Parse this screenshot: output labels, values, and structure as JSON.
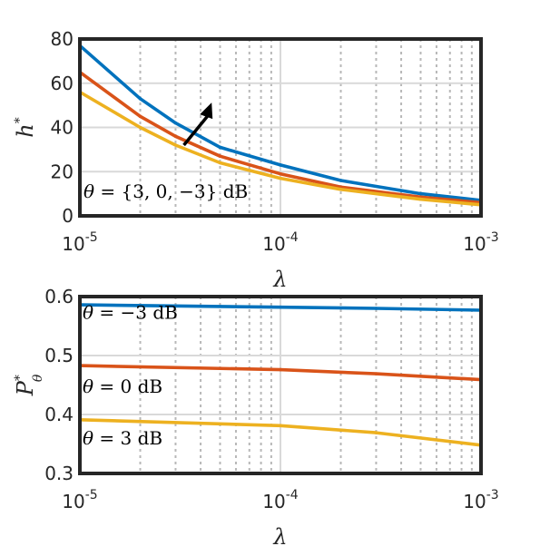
{
  "colors": {
    "blue": "#0072BD",
    "orange": "#D95319",
    "yellow": "#EDB120",
    "axis": "#262626",
    "grid_major": "#d9d9d9",
    "grid_minor": "#b8b8b8"
  },
  "chart_data": [
    {
      "type": "line",
      "xscale": "log",
      "xlim": [
        1e-05,
        0.001
      ],
      "ylim": [
        0,
        80
      ],
      "xlabel": "λ",
      "ylabel": "h*",
      "x_ticks": [
        {
          "base": "10",
          "exp": "-5"
        },
        {
          "base": "10",
          "exp": "-4"
        },
        {
          "base": "10",
          "exp": "-3"
        }
      ],
      "y_ticks": [
        "0",
        "20",
        "40",
        "60",
        "80"
      ],
      "y_tick_values": [
        0,
        20,
        40,
        60,
        80
      ],
      "grid": true,
      "annotation": {
        "theta": "θ",
        "rest": " = {3, 0, −3} dB",
        "arrow_from": [
          3.3e-05,
          32
        ],
        "arrow_to": [
          4.4e-05,
          50
        ]
      },
      "x": [
        1e-05,
        2e-05,
        3e-05,
        5e-05,
        0.0001,
        0.0002,
        0.0005,
        0.001
      ],
      "series": [
        {
          "color": "blue",
          "values": [
            77,
            53,
            42,
            31,
            23,
            16,
            10,
            7
          ]
        },
        {
          "color": "orange",
          "values": [
            65,
            45,
            36,
            27,
            19,
            13,
            8.5,
            6
          ]
        },
        {
          "color": "yellow",
          "values": [
            56,
            40,
            32,
            24,
            17,
            12,
            7.5,
            5
          ]
        }
      ]
    },
    {
      "type": "line",
      "xscale": "log",
      "xlim": [
        1e-05,
        0.001
      ],
      "ylim": [
        0.3,
        0.6
      ],
      "xlabel": "λ",
      "ylabel": "P*θ",
      "x_ticks": [
        {
          "base": "10",
          "exp": "-5"
        },
        {
          "base": "10",
          "exp": "-4"
        },
        {
          "base": "10",
          "exp": "-3"
        }
      ],
      "y_ticks": [
        "0.3",
        "0.4",
        "0.5",
        "0.6"
      ],
      "y_tick_values": [
        0.3,
        0.4,
        0.5,
        0.6
      ],
      "grid": true,
      "x": [
        1e-05,
        0.0001,
        0.0003,
        0.001
      ],
      "series": [
        {
          "color": "blue",
          "label_theta": "θ",
          "label_rest": " = −3 dB",
          "label_y": 0.562,
          "values": [
            0.586,
            0.582,
            0.58,
            0.577
          ]
        },
        {
          "color": "orange",
          "label_theta": "θ",
          "label_rest": " = 0 dB",
          "label_y": 0.437,
          "values": [
            0.483,
            0.476,
            0.469,
            0.459
          ]
        },
        {
          "color": "yellow",
          "label_theta": "θ",
          "label_rest": " = 3 dB",
          "label_y": 0.349,
          "values": [
            0.391,
            0.381,
            0.369,
            0.348
          ]
        }
      ]
    }
  ]
}
